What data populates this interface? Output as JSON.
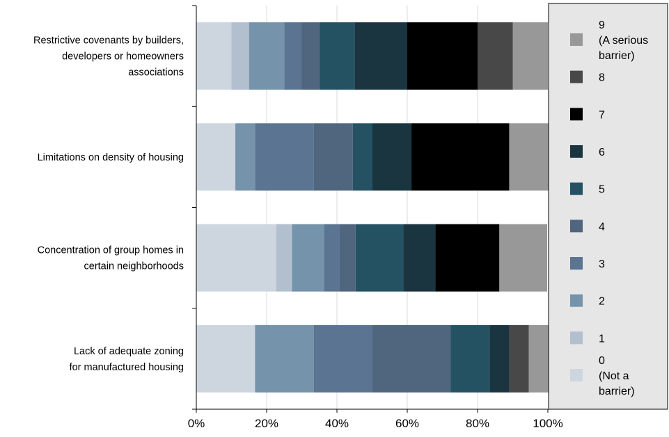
{
  "chart_data": {
    "type": "bar",
    "orientation": "horizontal",
    "stacked": true,
    "normalized": true,
    "title": "",
    "xlabel": "",
    "ylabel": "",
    "xlim": [
      0,
      100
    ],
    "x_ticks": [
      "0%",
      "20%",
      "40%",
      "60%",
      "80%",
      "100%"
    ],
    "grid": true,
    "legend_position": "right",
    "categories": [
      [
        "Restrictive covenants by builders,",
        "developers or homeowners",
        "associations"
      ],
      [
        "Limitations on density of housing"
      ],
      [
        "Concentration of group homes in",
        "certain neighborhoods"
      ],
      [
        "Lack of adequate zoning",
        "for manufactured housing"
      ]
    ],
    "series": [
      {
        "name": [
          "0",
          "(Not a",
          "barrier)"
        ],
        "color": "#cdd6df",
        "values": [
          10,
          11.1,
          22.7,
          16.7
        ]
      },
      {
        "name": [
          "1"
        ],
        "color": "#b2bfcf",
        "values": [
          5,
          0,
          4.5,
          0
        ]
      },
      {
        "name": [
          "2"
        ],
        "color": "#7593aa",
        "values": [
          10,
          5.6,
          9.1,
          16.7
        ]
      },
      {
        "name": [
          "3"
        ],
        "color": "#5a7491",
        "values": [
          5,
          16.7,
          4.5,
          16.7
        ]
      },
      {
        "name": [
          "4"
        ],
        "color": "#50657e",
        "values": [
          5,
          11.1,
          4.5,
          22.2
        ]
      },
      {
        "name": [
          "5"
        ],
        "color": "#245263",
        "values": [
          10,
          5.6,
          13.6,
          11.1
        ]
      },
      {
        "name": [
          "6"
        ],
        "color": "#1a3540",
        "values": [
          15,
          11.1,
          9.1,
          5.6
        ]
      },
      {
        "name": [
          "7"
        ],
        "color": "#000000",
        "values": [
          20,
          27.8,
          18.2,
          0
        ]
      },
      {
        "name": [
          "8"
        ],
        "color": "#484848",
        "values": [
          10,
          0,
          0,
          5.6
        ]
      },
      {
        "name": [
          "9",
          "(A serious",
          "barrier)"
        ],
        "color": "#989898",
        "values": [
          10,
          11.1,
          13.6,
          5.6
        ]
      }
    ]
  }
}
